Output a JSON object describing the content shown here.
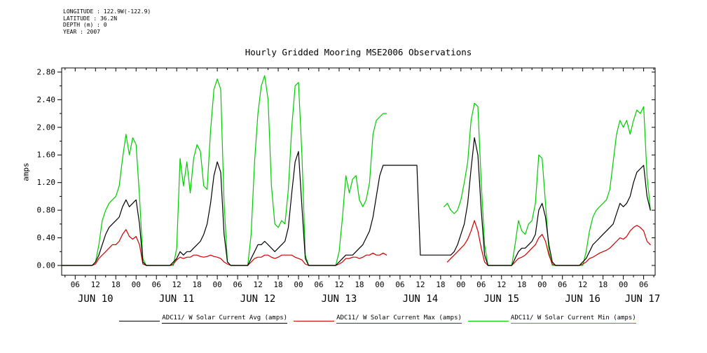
{
  "header": {
    "longitude_line": "LONGITUDE : 122.9W(-122.9)",
    "latitude_line": "LATITUDE : 36.2N",
    "depth_line": "DEPTH (m) : 0",
    "year_line": "YEAR : 2007"
  },
  "chart_data": {
    "type": "line",
    "title": "Hourly Gridded Mooring MSE2006 Observations",
    "ylabel": "amps",
    "xlabel": "",
    "ylim": [
      0,
      2.8
    ],
    "y_ticks": [
      0.0,
      0.4,
      0.8,
      1.2,
      1.6,
      2.0,
      2.4,
      2.8
    ],
    "grid": false,
    "legend_position": "bottom",
    "x_unit_note": "hours since 2007 JUN 10 00:00 UTC, hourly samples",
    "x_start_hour": 2,
    "x_axis_hours": [
      2,
      177.4
    ],
    "x_major_tick_step_hours": 6,
    "x_tick_label_cycle": [
      "06",
      "12",
      "18",
      "00"
    ],
    "x_day_labels": [
      {
        "label": "JUN 10",
        "hour": 12
      },
      {
        "label": "JUN 11",
        "hour": 36
      },
      {
        "label": "JUN 12",
        "hour": 60
      },
      {
        "label": "JUN 13",
        "hour": 84
      },
      {
        "label": "JUN 14",
        "hour": 108
      },
      {
        "label": "JUN 15",
        "hour": 132
      },
      {
        "label": "JUN 16",
        "hour": 156
      },
      {
        "label": "JUN 17",
        "hour": 180
      }
    ],
    "series": [
      {
        "name": "ADC11/ W Solar Current Avg (amps)",
        "color": "#000000",
        "values": [
          0,
          0,
          0,
          0,
          0,
          0,
          0,
          0,
          0,
          0,
          0.05,
          0.15,
          0.3,
          0.45,
          0.55,
          0.6,
          0.65,
          0.7,
          0.85,
          0.95,
          0.85,
          0.9,
          0.95,
          0.6,
          0.05,
          0,
          0,
          0,
          0,
          0,
          0,
          0,
          0,
          0.05,
          0.1,
          0.2,
          0.15,
          0.2,
          0.2,
          0.25,
          0.3,
          0.35,
          0.45,
          0.6,
          0.9,
          1.3,
          1.5,
          1.35,
          0.45,
          0.05,
          0,
          0,
          0,
          0,
          0,
          0,
          0.1,
          0.2,
          0.3,
          0.3,
          0.35,
          0.3,
          0.25,
          0.2,
          0.25,
          0.3,
          0.35,
          0.55,
          1.05,
          1.5,
          1.65,
          0.85,
          0.1,
          0,
          0,
          0,
          0,
          0,
          0,
          0,
          0,
          0,
          0.05,
          0.1,
          0.15,
          0.15,
          0.15,
          0.2,
          0.25,
          0.3,
          0.4,
          0.5,
          0.7,
          1.0,
          1.3,
          1.45,
          1.45,
          1.45,
          1.45,
          1.45,
          1.45,
          1.45,
          1.45,
          1.45,
          1.45,
          1.45,
          0.15,
          0.15,
          0.15,
          0.15,
          0.15,
          0.15,
          0.15,
          0.15,
          0.15,
          0.15,
          0.2,
          0.3,
          0.45,
          0.6,
          0.9,
          1.4,
          1.85,
          1.6,
          0.8,
          0.15,
          0,
          0,
          0,
          0,
          0,
          0,
          0,
          0,
          0.1,
          0.2,
          0.25,
          0.25,
          0.3,
          0.35,
          0.45,
          0.8,
          0.9,
          0.7,
          0.3,
          0.05,
          0,
          0,
          0,
          0,
          0,
          0,
          0,
          0,
          0.05,
          0.1,
          0.2,
          0.3,
          0.35,
          0.4,
          0.45,
          0.5,
          0.55,
          0.6,
          0.75,
          0.9,
          0.85,
          0.9,
          1.0,
          1.2,
          1.35,
          1.4,
          1.45,
          1.0,
          0.8
        ]
      },
      {
        "name": "ADC11/ W Solar Current Max (amps)",
        "color": "#cc0000",
        "values": [
          0,
          0,
          0,
          0,
          0,
          0,
          0,
          0,
          0,
          0,
          0.02,
          0.1,
          0.15,
          0.2,
          0.25,
          0.3,
          0.3,
          0.35,
          0.45,
          0.52,
          0.42,
          0.38,
          0.42,
          0.3,
          0.02,
          0,
          0,
          0,
          0,
          0,
          0,
          0,
          0,
          0.02,
          0.08,
          0.12,
          0.1,
          0.12,
          0.12,
          0.15,
          0.15,
          0.13,
          0.12,
          0.13,
          0.15,
          0.13,
          0.12,
          0.1,
          0.05,
          0.02,
          0,
          0,
          0,
          0,
          0,
          0,
          0.05,
          0.1,
          0.12,
          0.12,
          0.15,
          0.15,
          0.12,
          0.1,
          0.12,
          0.15,
          0.15,
          0.15,
          0.15,
          0.12,
          0.1,
          0.08,
          0.02,
          0,
          0,
          0,
          0,
          0,
          0,
          0,
          0,
          0,
          0.02,
          0.05,
          0.1,
          0.1,
          0.12,
          0.12,
          0.1,
          0.12,
          0.15,
          0.15,
          0.18,
          0.15,
          0.15,
          0.18,
          0.15,
          null,
          null,
          null,
          null,
          null,
          null,
          null,
          null,
          null,
          null,
          null,
          null,
          null,
          null,
          null,
          null,
          null,
          0.05,
          0.1,
          0.15,
          0.2,
          0.25,
          0.3,
          0.38,
          0.5,
          0.65,
          0.5,
          0.25,
          0.05,
          0,
          0,
          0,
          0,
          0,
          0,
          0,
          0,
          0.05,
          0.1,
          0.12,
          0.15,
          0.2,
          0.25,
          0.3,
          0.4,
          0.45,
          0.35,
          0.15,
          0.02,
          0,
          0,
          0,
          0,
          0,
          0,
          0,
          0,
          0.02,
          0.05,
          0.1,
          0.12,
          0.15,
          0.18,
          0.2,
          0.22,
          0.25,
          0.3,
          0.35,
          0.4,
          0.38,
          0.42,
          0.5,
          0.55,
          0.58,
          0.55,
          0.5,
          0.35,
          0.3
        ]
      },
      {
        "name": "ADC11/ W Solar Current Min (amps)",
        "color": "#00cc00",
        "values": [
          0,
          0,
          0,
          0,
          0,
          0,
          0,
          0,
          0,
          0,
          0.05,
          0.3,
          0.65,
          0.8,
          0.9,
          0.95,
          1.0,
          1.15,
          1.55,
          1.9,
          1.6,
          1.85,
          1.75,
          1.0,
          0.1,
          0,
          0,
          0,
          0,
          0,
          0,
          0,
          0,
          0,
          0.25,
          1.55,
          1.15,
          1.5,
          1.05,
          1.55,
          1.75,
          1.65,
          1.15,
          1.1,
          1.95,
          2.55,
          2.7,
          2.55,
          0.9,
          0.05,
          0,
          0,
          0,
          0,
          0,
          0,
          0.45,
          1.5,
          2.2,
          2.6,
          2.75,
          2.4,
          1.15,
          0.6,
          0.55,
          0.65,
          0.6,
          1.1,
          2.0,
          2.6,
          2.65,
          1.6,
          0.15,
          0,
          0,
          0,
          0,
          0,
          0,
          0,
          0,
          0,
          0.2,
          0.7,
          1.3,
          1.05,
          1.25,
          1.3,
          0.95,
          0.85,
          0.95,
          1.2,
          1.9,
          2.1,
          2.15,
          2.2,
          2.2,
          null,
          null,
          null,
          null,
          null,
          null,
          null,
          null,
          null,
          null,
          null,
          null,
          null,
          null,
          null,
          null,
          0.85,
          0.9,
          0.8,
          0.75,
          0.8,
          0.95,
          1.2,
          1.5,
          2.1,
          2.35,
          2.3,
          1.2,
          0.3,
          0,
          0,
          0,
          0,
          0,
          0,
          0,
          0,
          0.3,
          0.65,
          0.5,
          0.45,
          0.6,
          0.65,
          0.9,
          1.6,
          1.55,
          0.9,
          0.2,
          0,
          0,
          0,
          0,
          0,
          0,
          0,
          0,
          0,
          0,
          0.2,
          0.5,
          0.7,
          0.8,
          0.85,
          0.9,
          0.95,
          1.1,
          1.5,
          1.9,
          2.1,
          2.0,
          2.1,
          1.9,
          2.1,
          2.25,
          2.2,
          2.3,
          1.3,
          0.8
        ]
      }
    ]
  }
}
